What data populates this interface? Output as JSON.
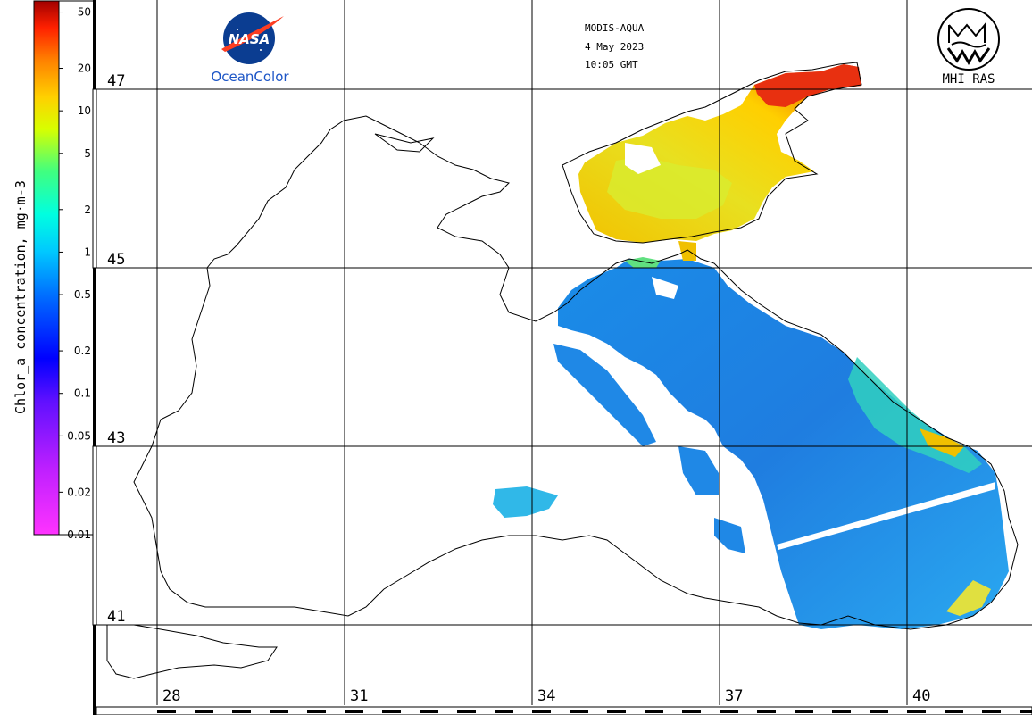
{
  "header": {
    "sensor": "MODIS-AQUA",
    "date": "4 May 2023",
    "time": "10:05 GMT"
  },
  "logos": {
    "nasa_text": "NASA",
    "oceancolor": "OceanColor",
    "mhi": "MHI RAS"
  },
  "colorbar": {
    "title": "Chlor_a concentration, mg·m-3",
    "ticks": [
      "50",
      "20",
      "10",
      "5",
      "2",
      "1",
      "0.5",
      "0.2",
      "0.1",
      "0.05",
      "0.02",
      "0.01"
    ],
    "scale": "log",
    "range": [
      0.01,
      60
    ],
    "colors": [
      "#ff00ff",
      "#8000ff",
      "#0000ff",
      "#0080ff",
      "#00ffff",
      "#00ff80",
      "#ffff00",
      "#ff8000",
      "#ff0000",
      "#a00000"
    ]
  },
  "map": {
    "lat_labels": [
      "47",
      "45",
      "43",
      "41"
    ],
    "lon_labels": [
      "28",
      "31",
      "34",
      "37",
      "40"
    ],
    "land_color": "#ffffff",
    "coast_color": "#000000"
  }
}
